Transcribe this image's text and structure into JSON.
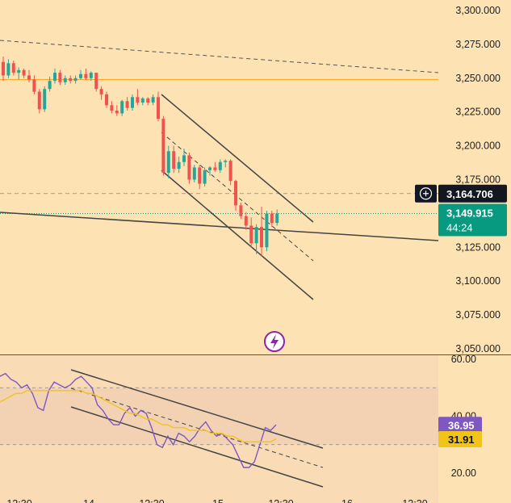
{
  "chart_data": [
    {
      "type": "candlestick",
      "panel": "price",
      "y_ticks": [
        "3,300.000",
        "3,275.000",
        "3,250.000",
        "3,225.000",
        "3,200.000",
        "3,175.000",
        "3,125.000",
        "3,100.000",
        "3,075.000",
        "3,050.000"
      ],
      "ylim": [
        3048,
        3307
      ],
      "last_price": {
        "value": "3,149.915",
        "countdown": "44:24"
      },
      "crosshair_price": "3,164.706",
      "horizontal_level": 3249,
      "candles": [
        {
          "o": 3262,
          "h": 3266,
          "l": 3248,
          "c": 3252
        },
        {
          "o": 3252,
          "h": 3264,
          "l": 3250,
          "c": 3261
        },
        {
          "o": 3261,
          "h": 3263,
          "l": 3252,
          "c": 3254
        },
        {
          "o": 3254,
          "h": 3258,
          "l": 3249,
          "c": 3256
        },
        {
          "o": 3256,
          "h": 3257,
          "l": 3250,
          "c": 3252
        },
        {
          "o": 3252,
          "h": 3256,
          "l": 3247,
          "c": 3249
        },
        {
          "o": 3249,
          "h": 3252,
          "l": 3238,
          "c": 3240
        },
        {
          "o": 3240,
          "h": 3242,
          "l": 3224,
          "c": 3227
        },
        {
          "o": 3227,
          "h": 3244,
          "l": 3225,
          "c": 3242
        },
        {
          "o": 3242,
          "h": 3251,
          "l": 3240,
          "c": 3248
        },
        {
          "o": 3248,
          "h": 3257,
          "l": 3246,
          "c": 3254
        },
        {
          "o": 3254,
          "h": 3256,
          "l": 3245,
          "c": 3247
        },
        {
          "o": 3247,
          "h": 3252,
          "l": 3245,
          "c": 3250
        },
        {
          "o": 3250,
          "h": 3252,
          "l": 3246,
          "c": 3248
        },
        {
          "o": 3248,
          "h": 3252,
          "l": 3246,
          "c": 3250
        },
        {
          "o": 3250,
          "h": 3256,
          "l": 3249,
          "c": 3253
        },
        {
          "o": 3253,
          "h": 3257,
          "l": 3249,
          "c": 3250
        },
        {
          "o": 3250,
          "h": 3255,
          "l": 3248,
          "c": 3254
        },
        {
          "o": 3254,
          "h": 3254,
          "l": 3240,
          "c": 3242
        },
        {
          "o": 3242,
          "h": 3244,
          "l": 3234,
          "c": 3238
        },
        {
          "o": 3238,
          "h": 3240,
          "l": 3228,
          "c": 3230
        },
        {
          "o": 3230,
          "h": 3233,
          "l": 3224,
          "c": 3226
        },
        {
          "o": 3226,
          "h": 3230,
          "l": 3222,
          "c": 3224
        },
        {
          "o": 3224,
          "h": 3234,
          "l": 3222,
          "c": 3233
        },
        {
          "o": 3233,
          "h": 3236,
          "l": 3226,
          "c": 3228
        },
        {
          "o": 3228,
          "h": 3238,
          "l": 3226,
          "c": 3236
        },
        {
          "o": 3236,
          "h": 3242,
          "l": 3230,
          "c": 3232
        },
        {
          "o": 3232,
          "h": 3236,
          "l": 3230,
          "c": 3235
        },
        {
          "o": 3235,
          "h": 3236,
          "l": 3230,
          "c": 3232
        },
        {
          "o": 3232,
          "h": 3238,
          "l": 3230,
          "c": 3236
        },
        {
          "o": 3236,
          "h": 3240,
          "l": 3218,
          "c": 3220
        },
        {
          "o": 3220,
          "h": 3222,
          "l": 3178,
          "c": 3180
        },
        {
          "o": 3180,
          "h": 3200,
          "l": 3176,
          "c": 3196
        },
        {
          "o": 3196,
          "h": 3200,
          "l": 3180,
          "c": 3183
        },
        {
          "o": 3183,
          "h": 3192,
          "l": 3180,
          "c": 3188
        },
        {
          "o": 3188,
          "h": 3198,
          "l": 3185,
          "c": 3193
        },
        {
          "o": 3193,
          "h": 3195,
          "l": 3172,
          "c": 3175
        },
        {
          "o": 3175,
          "h": 3186,
          "l": 3173,
          "c": 3184
        },
        {
          "o": 3184,
          "h": 3186,
          "l": 3168,
          "c": 3172
        },
        {
          "o": 3172,
          "h": 3184,
          "l": 3170,
          "c": 3182
        },
        {
          "o": 3182,
          "h": 3185,
          "l": 3178,
          "c": 3184
        },
        {
          "o": 3184,
          "h": 3188,
          "l": 3181,
          "c": 3182
        },
        {
          "o": 3182,
          "h": 3190,
          "l": 3180,
          "c": 3188
        },
        {
          "o": 3188,
          "h": 3190,
          "l": 3184,
          "c": 3189
        },
        {
          "o": 3189,
          "h": 3190,
          "l": 3171,
          "c": 3174
        },
        {
          "o": 3174,
          "h": 3175,
          "l": 3152,
          "c": 3156
        },
        {
          "o": 3156,
          "h": 3158,
          "l": 3146,
          "c": 3148
        },
        {
          "o": 3148,
          "h": 3151,
          "l": 3138,
          "c": 3141
        },
        {
          "o": 3141,
          "h": 3147,
          "l": 3125,
          "c": 3128
        },
        {
          "o": 3128,
          "h": 3142,
          "l": 3120,
          "c": 3140
        },
        {
          "o": 3140,
          "h": 3155,
          "l": 3118,
          "c": 3125
        },
        {
          "o": 3125,
          "h": 3152,
          "l": 3122,
          "c": 3150
        },
        {
          "o": 3150,
          "h": 3152,
          "l": 3140,
          "c": 3143
        },
        {
          "o": 3143,
          "h": 3153,
          "l": 3141,
          "c": 3150
        }
      ]
    },
    {
      "type": "line",
      "panel": "oscillator",
      "y_ticks": [
        "60.00",
        "40.00",
        "20.00"
      ],
      "ylim": [
        12,
        62
      ],
      "band": [
        50,
        30
      ],
      "labels": {
        "fast": "36.95",
        "slow": "31.91"
      },
      "series": [
        {
          "color": "#7e57c2",
          "values": [
            54,
            55,
            53,
            52,
            50,
            51,
            48,
            43,
            42,
            49,
            52,
            51,
            50,
            51,
            53,
            54,
            52,
            50,
            44,
            42,
            39,
            37,
            37,
            41,
            43,
            40,
            42,
            41,
            36,
            30,
            29,
            33,
            30,
            34,
            33,
            31,
            33,
            36,
            38,
            35,
            33,
            34,
            32,
            30,
            26,
            22,
            22,
            24,
            30,
            36,
            35,
            37
          ]
        },
        {
          "color": "#f0c419",
          "values": [
            45,
            46,
            47,
            48,
            48,
            49,
            49,
            49,
            49,
            49,
            49,
            49,
            49,
            49,
            49,
            49,
            48,
            48,
            47,
            46,
            45,
            44,
            43,
            42,
            41,
            41,
            40,
            39,
            39,
            38,
            37,
            37,
            36,
            36,
            36,
            35,
            35,
            35,
            35,
            34,
            34,
            34,
            33,
            33,
            32,
            31,
            31,
            31,
            31,
            31,
            31,
            32
          ]
        }
      ]
    }
  ],
  "x_axis_labels": [
    "12:30",
    "14",
    "12:30",
    "15",
    "12:30",
    "16",
    "12:30"
  ],
  "colors": {
    "up": "#26a69a",
    "down": "#ef5350",
    "level": "#f5a623",
    "tag_dark": "#131722",
    "tag_green": "#089981",
    "tag_purple": "#7e57c2",
    "tag_yellow": "#f0c419"
  },
  "icons": {
    "plus": "plus-circle-icon",
    "flash": "flash-icon"
  }
}
